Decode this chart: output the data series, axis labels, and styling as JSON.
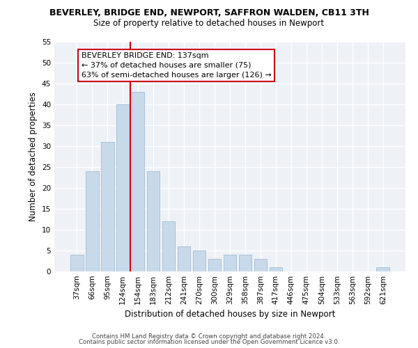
{
  "title": "BEVERLEY, BRIDGE END, NEWPORT, SAFFRON WALDEN, CB11 3TH",
  "subtitle": "Size of property relative to detached houses in Newport",
  "xlabel": "Distribution of detached houses by size in Newport",
  "ylabel": "Number of detached properties",
  "categories": [
    "37sqm",
    "66sqm",
    "95sqm",
    "124sqm",
    "154sqm",
    "183sqm",
    "212sqm",
    "241sqm",
    "270sqm",
    "300sqm",
    "329sqm",
    "358sqm",
    "387sqm",
    "417sqm",
    "446sqm",
    "475sqm",
    "504sqm",
    "533sqm",
    "563sqm",
    "592sqm",
    "621sqm"
  ],
  "values": [
    4,
    24,
    31,
    40,
    43,
    24,
    12,
    6,
    5,
    3,
    4,
    4,
    3,
    1,
    0,
    0,
    0,
    0,
    0,
    0,
    1
  ],
  "bar_color": "#c8daea",
  "bar_edge_color": "#a8c0d6",
  "vline_color": "#cc0000",
  "annotation_text": "BEVERLEY BRIDGE END: 137sqm\n← 37% of detached houses are smaller (75)\n63% of semi-detached houses are larger (126) →",
  "annotation_box_color": "#ffffff",
  "annotation_box_edge": "#cc0000",
  "ylim": [
    0,
    55
  ],
  "yticks": [
    0,
    5,
    10,
    15,
    20,
    25,
    30,
    35,
    40,
    45,
    50,
    55
  ],
  "bg_color": "#eef2f7",
  "footer1": "Contains HM Land Registry data © Crown copyright and database right 2024.",
  "footer2": "Contains public sector information licensed under the Open Government Licence v3.0."
}
